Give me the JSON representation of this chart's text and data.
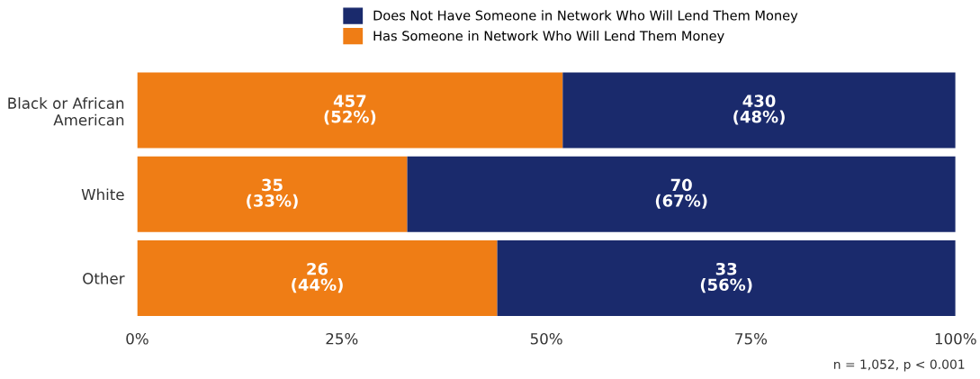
{
  "chart_data": {
    "type": "bar",
    "orientation": "horizontal",
    "stacked": true,
    "categories": [
      "Black or African\nAmerican",
      "White",
      "Other"
    ],
    "series": [
      {
        "name": "Has Someone in Network Who Will Lend Them Money",
        "color": "#ef7d15",
        "values": [
          52,
          33,
          44
        ],
        "value_labels": [
          "457\n(52%)",
          "35\n(33%)",
          "26\n(44%)"
        ]
      },
      {
        "name": "Does Not Have Someone in Network Who Will Lend Them Money",
        "color": "#1a2a6c",
        "values": [
          48,
          67,
          56
        ],
        "value_labels": [
          "430\n(48%)",
          "70\n(67%)",
          "33\n(56%)"
        ]
      }
    ],
    "xlim": [
      0,
      100
    ],
    "xticks": [
      {
        "value": 0,
        "label": "0%"
      },
      {
        "value": 25,
        "label": "25%"
      },
      {
        "value": 50,
        "label": "50%"
      },
      {
        "value": 75,
        "label": "75%"
      },
      {
        "value": 100,
        "label": "100%"
      }
    ],
    "legend": "top",
    "grid": false,
    "annotations": [
      "n = 1,052, p < 0.001"
    ]
  }
}
